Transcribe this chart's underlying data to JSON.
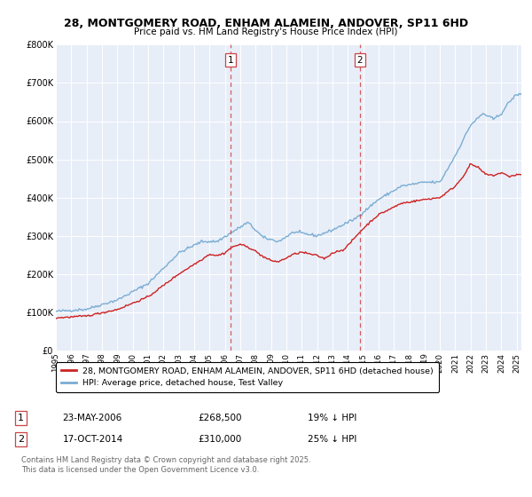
{
  "title": "28, MONTGOMERY ROAD, ENHAM ALAMEIN, ANDOVER, SP11 6HD",
  "subtitle": "Price paid vs. HM Land Registry's House Price Index (HPI)",
  "hpi_label": "HPI: Average price, detached house, Test Valley",
  "property_label": "28, MONTGOMERY ROAD, ENHAM ALAMEIN, ANDOVER, SP11 6HD (detached house)",
  "ylim": [
    0,
    800000
  ],
  "yticks": [
    0,
    100000,
    200000,
    300000,
    400000,
    500000,
    600000,
    700000,
    800000
  ],
  "ytick_labels": [
    "£0",
    "£100K",
    "£200K",
    "£300K",
    "£400K",
    "£500K",
    "£600K",
    "£700K",
    "£800K"
  ],
  "hpi_color": "#7aadd4",
  "property_color": "#cc2222",
  "vline1_x": 2006.39,
  "vline2_x": 2014.79,
  "sale1_date": "23-MAY-2006",
  "sale1_price": 268500,
  "sale1_hpi": "19% ↓ HPI",
  "sale2_date": "17-OCT-2014",
  "sale2_price": 310000,
  "sale2_hpi": "25% ↓ HPI",
  "footer": "Contains HM Land Registry data © Crown copyright and database right 2025.\nThis data is licensed under the Open Government Licence v3.0.",
  "plot_bg_color": "#e8eef8",
  "xlim_left": 1995,
  "xlim_right": 2025.3
}
